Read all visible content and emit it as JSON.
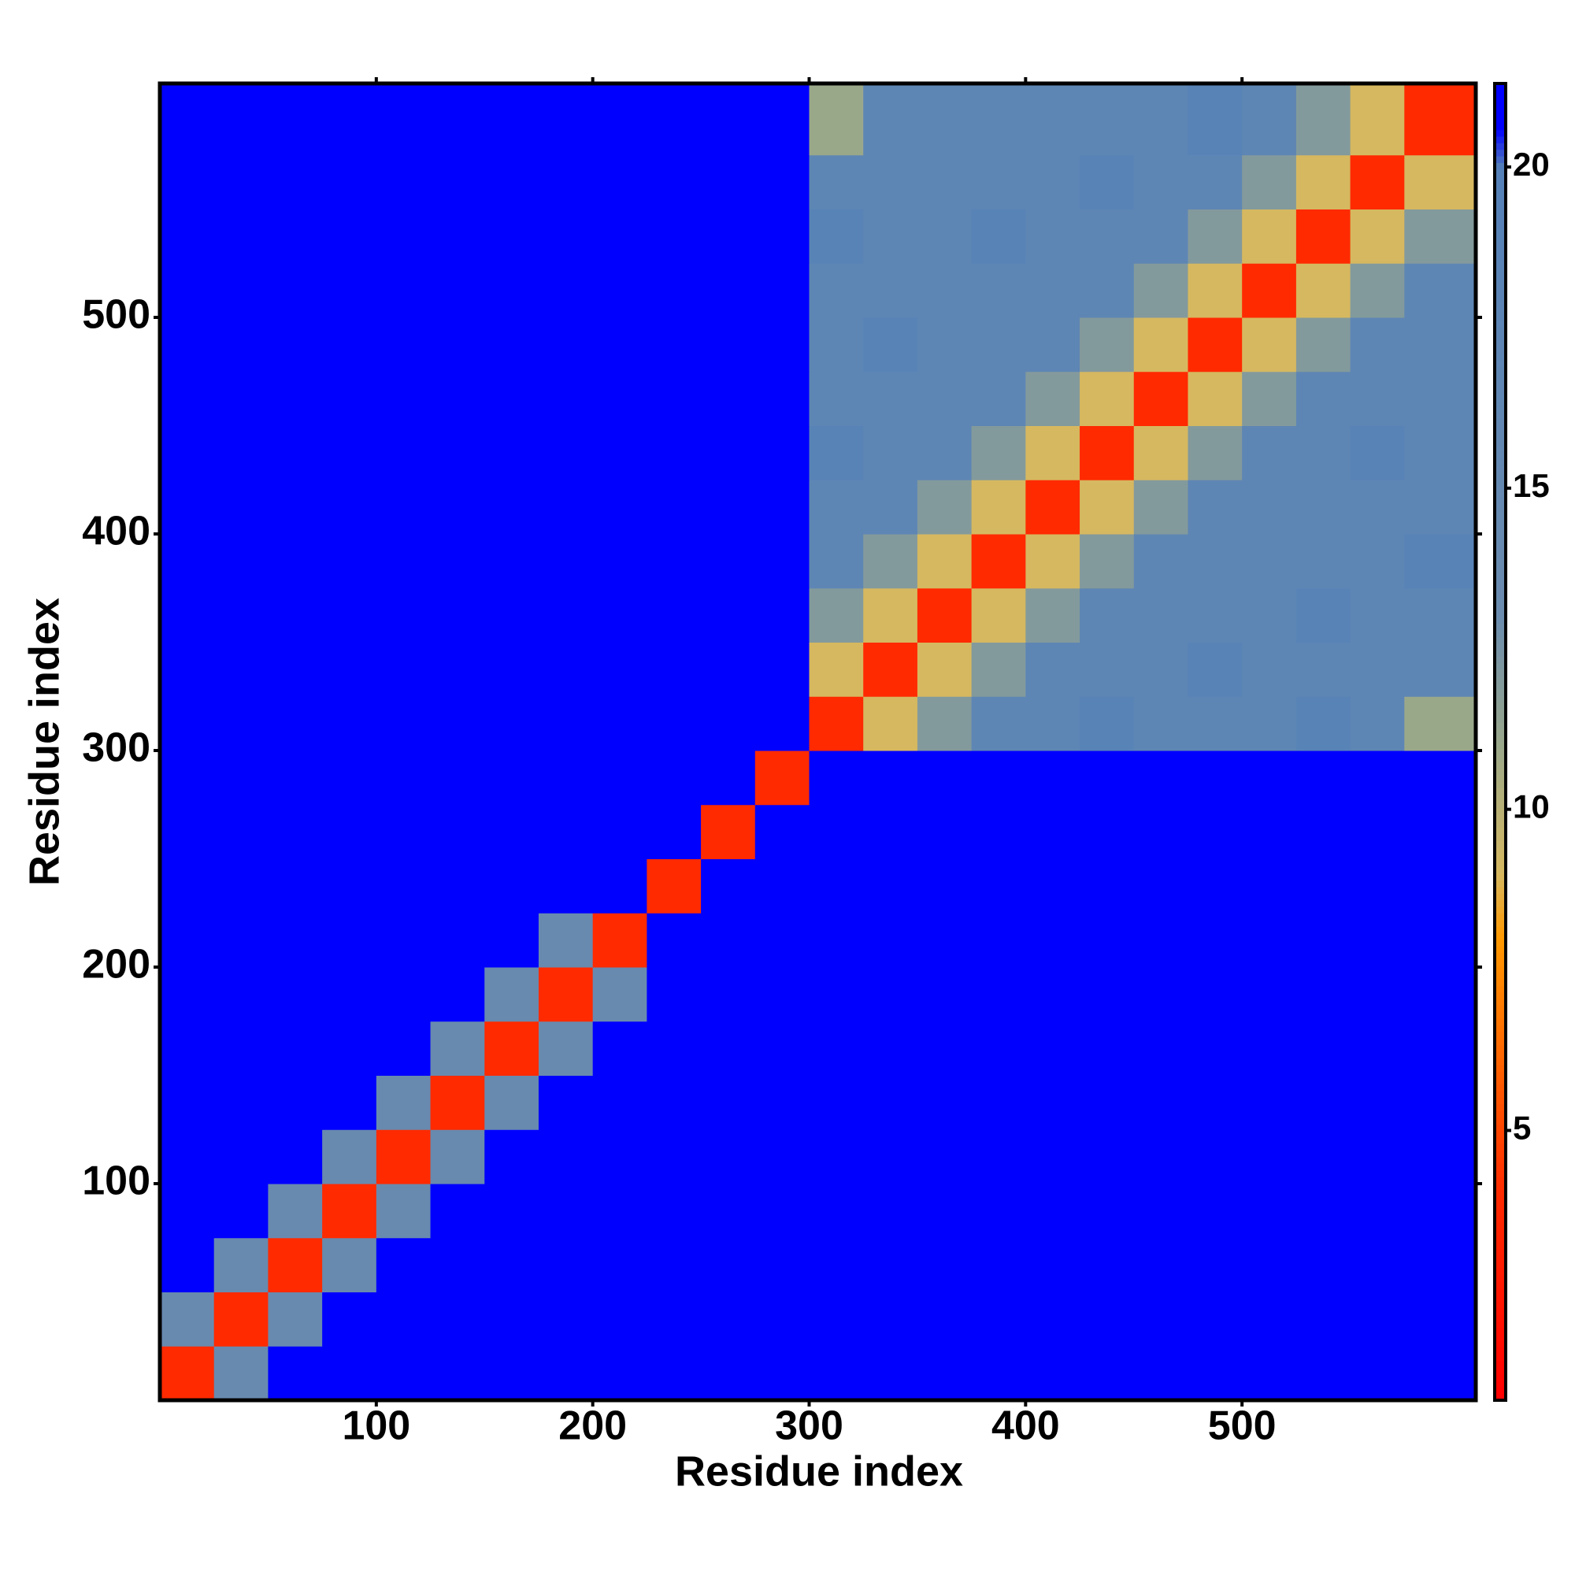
{
  "chart_data": {
    "type": "heatmap",
    "xlabel": "Residue index",
    "ylabel": "Residue index",
    "xlim": [
      0,
      608
    ],
    "ylim": [
      0,
      608
    ],
    "xticks": [
      100,
      200,
      300,
      400,
      500
    ],
    "yticks": [
      100,
      200,
      300,
      400,
      500
    ],
    "x": [
      0,
      25,
      50,
      75,
      100,
      125,
      150,
      175,
      200,
      225,
      250,
      275,
      300,
      325,
      350,
      375,
      400,
      425,
      450,
      475,
      500,
      525,
      550,
      575
    ],
    "y": [
      0,
      25,
      50,
      75,
      100,
      125,
      150,
      175,
      200,
      225,
      250,
      275,
      300,
      325,
      350,
      375,
      400,
      425,
      450,
      475,
      500,
      525,
      550,
      575
    ],
    "values": [
      [
        4,
        14,
        21,
        21,
        21,
        21,
        21,
        21,
        21,
        21,
        21,
        21,
        21,
        21,
        21,
        21,
        21,
        21,
        21,
        21,
        21,
        21,
        21,
        21
      ],
      [
        14,
        4,
        14,
        21,
        21,
        21,
        21,
        21,
        21,
        21,
        21,
        21,
        21,
        21,
        21,
        21,
        21,
        21,
        21,
        21,
        21,
        21,
        21,
        21
      ],
      [
        21,
        14,
        4,
        14,
        21,
        21,
        21,
        21,
        21,
        21,
        21,
        21,
        21,
        21,
        21,
        21,
        21,
        21,
        21,
        21,
        21,
        21,
        21,
        21
      ],
      [
        21,
        21,
        14,
        4,
        14,
        21,
        21,
        21,
        21,
        21,
        21,
        21,
        21,
        21,
        21,
        21,
        21,
        21,
        21,
        21,
        21,
        21,
        21,
        21
      ],
      [
        21,
        21,
        21,
        14,
        4,
        14,
        21,
        21,
        21,
        21,
        21,
        21,
        21,
        21,
        21,
        21,
        21,
        21,
        21,
        21,
        21,
        21,
        21,
        21
      ],
      [
        21,
        21,
        21,
        21,
        14,
        4,
        14,
        21,
        21,
        21,
        21,
        21,
        21,
        21,
        21,
        21,
        21,
        21,
        21,
        21,
        21,
        21,
        21,
        21
      ],
      [
        21,
        21,
        21,
        21,
        21,
        14,
        4,
        14,
        21,
        21,
        21,
        21,
        21,
        21,
        21,
        21,
        21,
        21,
        21,
        21,
        21,
        21,
        21,
        21
      ],
      [
        21,
        21,
        21,
        21,
        21,
        21,
        14,
        4,
        14,
        21,
        21,
        21,
        21,
        21,
        21,
        21,
        21,
        21,
        21,
        21,
        21,
        21,
        21,
        21
      ],
      [
        21,
        21,
        21,
        21,
        21,
        21,
        21,
        14,
        4,
        21,
        21,
        21,
        21,
        21,
        21,
        21,
        21,
        21,
        21,
        21,
        21,
        21,
        21,
        21
      ],
      [
        21,
        21,
        21,
        21,
        21,
        21,
        21,
        21,
        21,
        4,
        21,
        21,
        21,
        21,
        21,
        21,
        21,
        21,
        21,
        21,
        21,
        21,
        21,
        21
      ],
      [
        21,
        21,
        21,
        21,
        21,
        21,
        21,
        21,
        21,
        21,
        4,
        21,
        21,
        21,
        21,
        21,
        21,
        21,
        21,
        21,
        21,
        21,
        21,
        21
      ],
      [
        21,
        21,
        21,
        21,
        21,
        21,
        21,
        21,
        21,
        21,
        21,
        4,
        21,
        21,
        21,
        21,
        21,
        21,
        21,
        21,
        21,
        21,
        21,
        21
      ],
      [
        21,
        21,
        21,
        21,
        21,
        21,
        21,
        21,
        21,
        21,
        21,
        21,
        4,
        9,
        12,
        17,
        17,
        19,
        17,
        17,
        17,
        19,
        17,
        11
      ],
      [
        21,
        21,
        21,
        21,
        21,
        21,
        21,
        21,
        21,
        21,
        21,
        21,
        9,
        4,
        9,
        12,
        17,
        17,
        17,
        19,
        17,
        17,
        17,
        17
      ],
      [
        21,
        21,
        21,
        21,
        21,
        21,
        21,
        21,
        21,
        21,
        21,
        21,
        12,
        9,
        4,
        9,
        12,
        17,
        17,
        17,
        17,
        19,
        17,
        17
      ],
      [
        21,
        21,
        21,
        21,
        21,
        21,
        21,
        21,
        21,
        21,
        21,
        21,
        17,
        12,
        9,
        4,
        9,
        12,
        17,
        17,
        17,
        17,
        17,
        19
      ],
      [
        21,
        21,
        21,
        21,
        21,
        21,
        21,
        21,
        21,
        21,
        21,
        21,
        17,
        17,
        12,
        9,
        4,
        9,
        12,
        17,
        17,
        17,
        17,
        17
      ],
      [
        21,
        21,
        21,
        21,
        21,
        21,
        21,
        21,
        21,
        21,
        21,
        21,
        19,
        17,
        17,
        12,
        9,
        4,
        9,
        12,
        17,
        17,
        19,
        17
      ],
      [
        21,
        21,
        21,
        21,
        21,
        21,
        21,
        21,
        21,
        21,
        21,
        21,
        17,
        17,
        17,
        17,
        12,
        9,
        4,
        9,
        12,
        17,
        17,
        17
      ],
      [
        21,
        21,
        21,
        21,
        21,
        21,
        21,
        21,
        21,
        21,
        21,
        21,
        17,
        19,
        17,
        17,
        17,
        12,
        9,
        4,
        9,
        12,
        17,
        17
      ],
      [
        21,
        21,
        21,
        21,
        21,
        21,
        21,
        21,
        21,
        21,
        21,
        21,
        17,
        17,
        17,
        17,
        17,
        17,
        12,
        9,
        4,
        9,
        12,
        17
      ],
      [
        21,
        21,
        21,
        21,
        21,
        21,
        21,
        21,
        21,
        21,
        21,
        21,
        19,
        17,
        17,
        19,
        17,
        17,
        17,
        12,
        9,
        4,
        9,
        12
      ],
      [
        21,
        21,
        21,
        21,
        21,
        21,
        21,
        21,
        21,
        21,
        21,
        21,
        17,
        17,
        17,
        17,
        17,
        19,
        17,
        17,
        12,
        9,
        4,
        9
      ],
      [
        21,
        21,
        21,
        21,
        21,
        21,
        21,
        21,
        21,
        21,
        21,
        21,
        11,
        17,
        17,
        17,
        17,
        17,
        17,
        19,
        17,
        12,
        9,
        4
      ]
    ],
    "clim": [
      0.8,
      21.3
    ],
    "cticks": [
      5,
      10,
      15,
      20
    ],
    "colorscale": [
      [
        0.8,
        "#ff0000"
      ],
      [
        4,
        "#ff2a00"
      ],
      [
        8,
        "#ff9900"
      ],
      [
        9,
        "#d6b860"
      ],
      [
        11,
        "#9aa88a"
      ],
      [
        13,
        "#6b8cae"
      ],
      [
        20,
        "#5581b8"
      ],
      [
        20.6,
        "#0000ff"
      ],
      [
        21.3,
        "#0000ff"
      ]
    ]
  }
}
